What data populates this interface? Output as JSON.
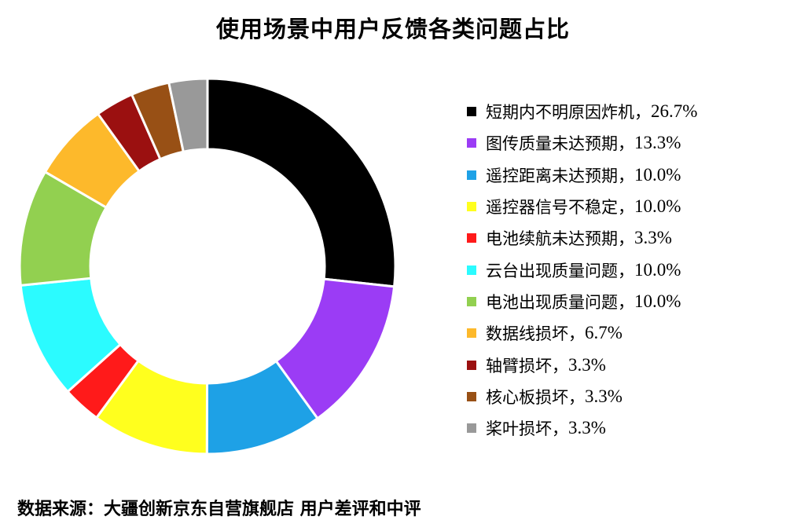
{
  "chart_data": {
    "type": "pie",
    "title": "使用场景中用户反馈各类问题占比",
    "legend_position": "right",
    "series": [
      {
        "name": "短期内不明原因炸机",
        "value": 26.7,
        "label": "26.7%",
        "color": "#000000"
      },
      {
        "name": "图传质量未达预期",
        "value": 13.3,
        "label": "13.3%",
        "color": "#9b3cf5"
      },
      {
        "name": "遥控距离未达预期",
        "value": 10.0,
        "label": "10.0%",
        "color": "#1ea1e6"
      },
      {
        "name": "遥控器信号不稳定",
        "value": 10.0,
        "label": "10.0%",
        "color": "#ffff1e"
      },
      {
        "name": "电池续航未达预期",
        "value": 3.3,
        "label": "3.3%",
        "color": "#ff1a1a"
      },
      {
        "name": "云台出现质量问题",
        "value": 10.0,
        "label": "10.0%",
        "color": "#2bfbff"
      },
      {
        "name": "电池出现质量问题",
        "value": 10.0,
        "label": "10.0%",
        "color": "#92d050"
      },
      {
        "name": "数据线损坏",
        "value": 6.7,
        "label": "6.7%",
        "color": "#fdb92b"
      },
      {
        "name": "轴臂损坏",
        "value": 3.3,
        "label": "3.3%",
        "color": "#9b1010"
      },
      {
        "name": "核心板损坏",
        "value": 3.3,
        "label": "3.3%",
        "color": "#985015"
      },
      {
        "name": "桨叶损坏",
        "value": 3.3,
        "label": "3.3%",
        "color": "#999999"
      }
    ],
    "separator": "，"
  },
  "source_text": "数据来源：大疆创新京东自营旗舰店 用户差评和中评"
}
